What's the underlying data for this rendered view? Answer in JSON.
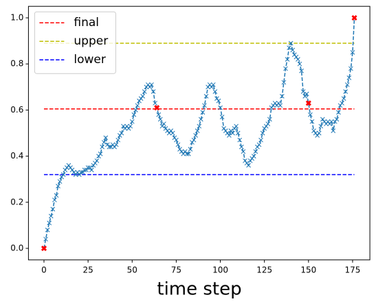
{
  "chart_data": {
    "type": "line",
    "xlabel": "time step",
    "x": [
      0,
      1,
      2,
      3,
      4,
      5,
      6,
      7,
      8,
      9,
      10,
      11,
      12,
      13,
      14,
      15,
      16,
      17,
      18,
      19,
      20,
      21,
      22,
      23,
      24,
      25,
      26,
      27,
      28,
      29,
      30,
      31,
      32,
      33,
      34,
      35,
      36,
      37,
      38,
      39,
      40,
      41,
      42,
      43,
      44,
      45,
      46,
      47,
      48,
      49,
      50,
      51,
      52,
      53,
      54,
      55,
      56,
      57,
      58,
      59,
      60,
      61,
      62,
      63,
      64,
      65,
      66,
      67,
      68,
      69,
      70,
      71,
      72,
      73,
      74,
      75,
      76,
      77,
      78,
      79,
      80,
      81,
      82,
      83,
      84,
      85,
      86,
      87,
      88,
      89,
      90,
      91,
      92,
      93,
      94,
      95,
      96,
      97,
      98,
      99,
      100,
      101,
      102,
      103,
      104,
      105,
      106,
      107,
      108,
      109,
      110,
      111,
      112,
      113,
      114,
      115,
      116,
      117,
      118,
      119,
      120,
      121,
      122,
      123,
      124,
      125,
      126,
      127,
      128,
      129,
      130,
      131,
      132,
      133,
      134,
      135,
      136,
      137,
      138,
      139,
      140,
      141,
      142,
      143,
      144,
      145,
      146,
      147,
      148,
      149,
      150,
      151,
      152,
      153,
      154,
      155,
      156,
      157,
      158,
      159,
      160,
      161,
      162,
      163,
      164,
      165,
      166,
      167,
      168,
      169,
      170,
      171,
      172,
      173,
      174,
      175,
      176
    ],
    "series": [
      {
        "color": "#1f77b4",
        "values": [
          0.0,
          0.04,
          0.08,
          0.11,
          0.14,
          0.17,
          0.21,
          0.23,
          0.27,
          0.29,
          0.31,
          0.32,
          0.34,
          0.35,
          0.36,
          0.35,
          0.34,
          0.33,
          0.32,
          0.33,
          0.32,
          0.33,
          0.33,
          0.34,
          0.34,
          0.35,
          0.35,
          0.34,
          0.36,
          0.37,
          0.38,
          0.4,
          0.41,
          0.44,
          0.46,
          0.48,
          0.45,
          0.44,
          0.44,
          0.45,
          0.44,
          0.45,
          0.47,
          0.49,
          0.5,
          0.53,
          0.52,
          0.53,
          0.52,
          0.53,
          0.55,
          0.58,
          0.6,
          0.62,
          0.64,
          0.65,
          0.66,
          0.68,
          0.7,
          0.71,
          0.7,
          0.71,
          0.68,
          0.63,
          0.61,
          0.58,
          0.56,
          0.53,
          0.54,
          0.52,
          0.51,
          0.5,
          0.51,
          0.5,
          0.48,
          0.47,
          0.45,
          0.43,
          0.42,
          0.41,
          0.42,
          0.41,
          0.41,
          0.43,
          0.46,
          0.47,
          0.49,
          0.51,
          0.53,
          0.56,
          0.59,
          0.62,
          0.66,
          0.7,
          0.71,
          0.7,
          0.71,
          0.68,
          0.65,
          0.64,
          0.61,
          0.57,
          0.52,
          0.51,
          0.5,
          0.49,
          0.51,
          0.5,
          0.52,
          0.53,
          0.5,
          0.47,
          0.44,
          0.42,
          0.38,
          0.37,
          0.36,
          0.38,
          0.39,
          0.4,
          0.42,
          0.44,
          0.45,
          0.47,
          0.5,
          0.52,
          0.53,
          0.54,
          0.56,
          0.61,
          0.62,
          0.63,
          0.62,
          0.63,
          0.62,
          0.66,
          0.72,
          0.78,
          0.82,
          0.87,
          0.89,
          0.86,
          0.84,
          0.83,
          0.82,
          0.8,
          0.77,
          0.68,
          0.66,
          0.67,
          0.63,
          0.58,
          0.55,
          0.51,
          0.5,
          0.49,
          0.5,
          0.53,
          0.56,
          0.55,
          0.54,
          0.55,
          0.54,
          0.55,
          0.51,
          0.55,
          0.56,
          0.59,
          0.62,
          0.63,
          0.65,
          0.68,
          0.71,
          0.74,
          0.78,
          0.85,
          1.0
        ]
      }
    ],
    "highlights": {
      "color": "#ff0000",
      "x": [
        0,
        64,
        150,
        176
      ],
      "values": [
        0.0,
        0.61,
        0.63,
        1.0
      ]
    },
    "hlines": [
      {
        "name": "final",
        "color": "#ff0000",
        "value": 0.605,
        "xmin": 0,
        "xmax": 176
      },
      {
        "name": "upper",
        "color": "#bfbf00",
        "value": 0.89,
        "xmin": 0,
        "xmax": 176
      },
      {
        "name": "lower",
        "color": "#0000ff",
        "value": 0.32,
        "xmin": 0,
        "xmax": 176
      }
    ],
    "legend": "upper left",
    "xlim": [
      -8.8,
      184.8
    ],
    "xticks": [
      0,
      25,
      50,
      75,
      100,
      125,
      150,
      175
    ],
    "ylim": [
      -0.05,
      1.05
    ],
    "yticks": [
      {
        "value": 0,
        "label": "0.0"
      },
      0.2,
      0.4,
      0.6,
      0.8,
      {
        "value": 1,
        "label": "1.0"
      }
    ]
  }
}
